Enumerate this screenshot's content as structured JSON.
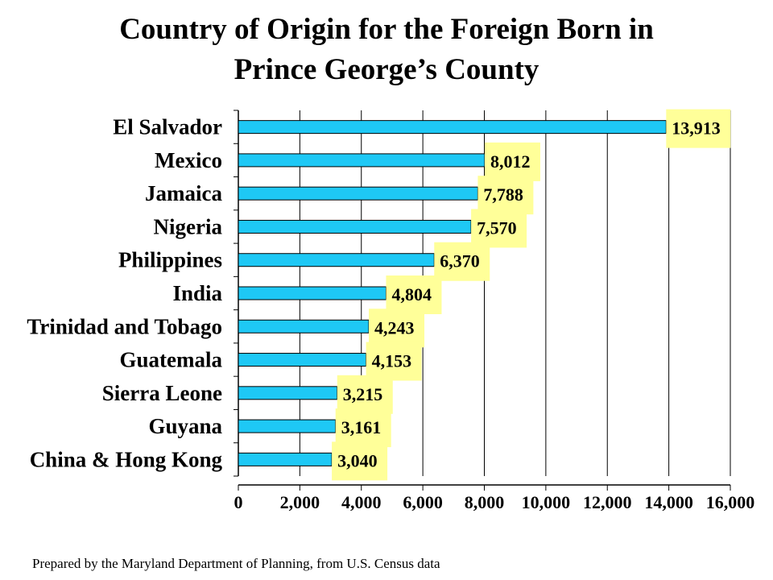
{
  "title_lines": [
    "Country of Origin for the Foreign Born in",
    "Prince George’s County"
  ],
  "footer": "Prepared by the Maryland Department of Planning, from U.S. Census data",
  "colors": {
    "bar": "#1ec8f5",
    "label_bg": "#ffff99",
    "axis": "#000000",
    "grid": "#000000"
  },
  "chart_data": {
    "type": "bar",
    "orientation": "horizontal",
    "title": "Country of Origin for the Foreign Born in Prince George’s County",
    "categories": [
      "El Salvador",
      "Mexico",
      "Jamaica",
      "Nigeria",
      "Philippines",
      "India",
      "Trinidad and Tobago",
      "Guatemala",
      "Sierra Leone",
      "Guyana",
      "China & Hong Kong"
    ],
    "values": [
      13913,
      8012,
      7788,
      7570,
      6370,
      4804,
      4243,
      4153,
      3215,
      3161,
      3040
    ],
    "value_labels": [
      "13,913",
      "8,012",
      "7,788",
      "7,570",
      "6,370",
      "4,804",
      "4,243",
      "4,153",
      "3,215",
      "3,161",
      "3,040"
    ],
    "xlim": [
      0,
      16000
    ],
    "xticks": [
      0,
      2000,
      4000,
      6000,
      8000,
      10000,
      12000,
      14000,
      16000
    ],
    "xtick_labels": [
      "0",
      "2,000",
      "4,000",
      "6,000",
      "8,000",
      "10,000",
      "12,000",
      "14,000",
      "16,000"
    ],
    "grid": true,
    "legend": "none"
  }
}
